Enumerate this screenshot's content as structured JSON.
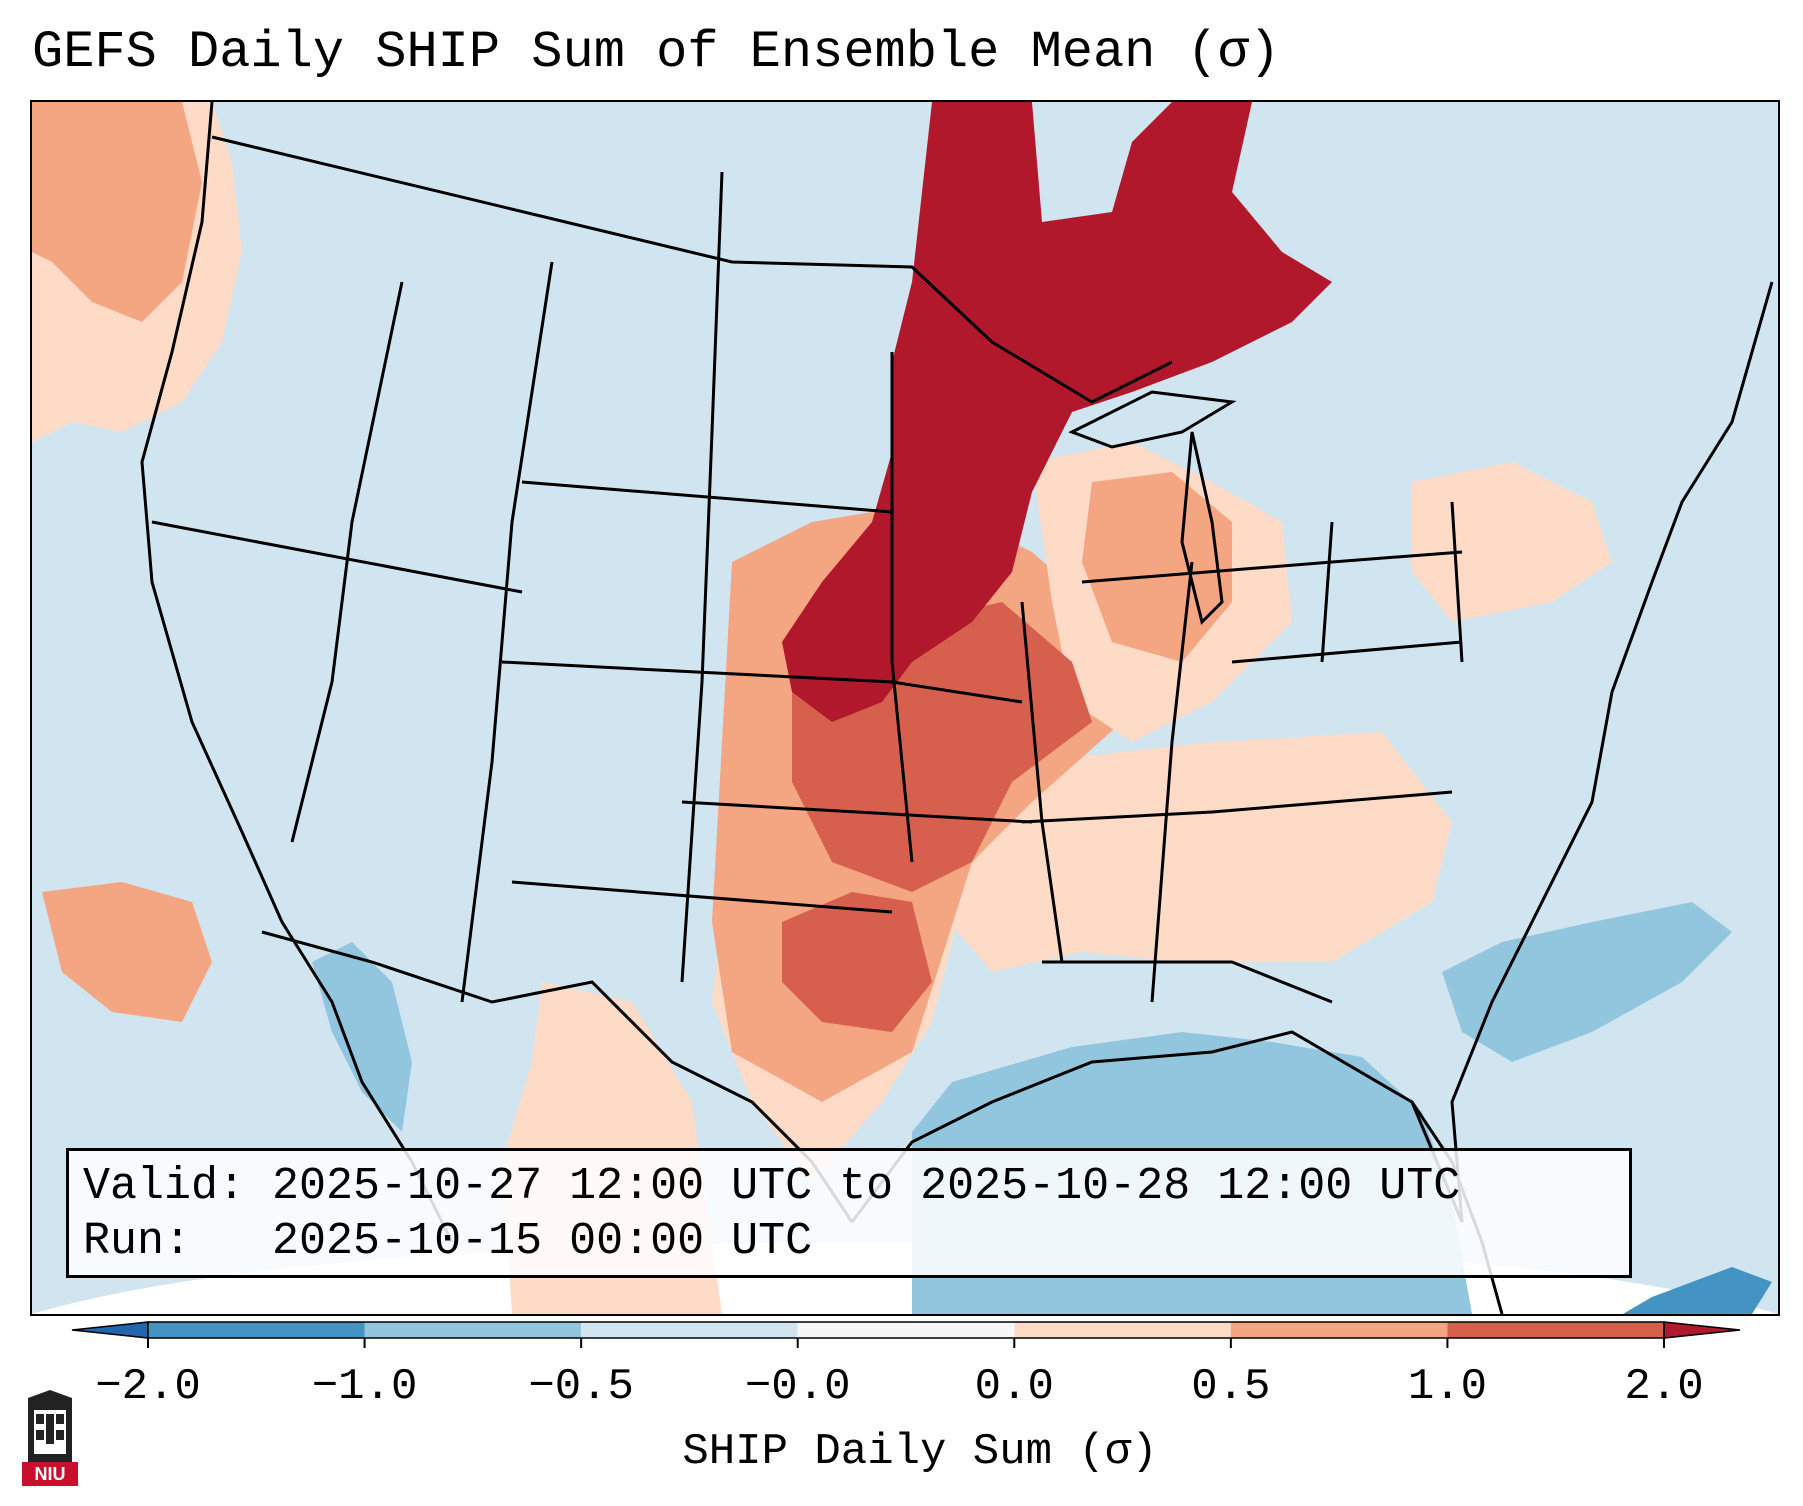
{
  "title": "GEFS Daily SHIP Sum of Ensemble Mean (σ)",
  "info": {
    "valid_label": "Valid:",
    "valid_value": "2025-10-27 12:00 UTC to 2025-10-28 12:00 UTC",
    "run_label": "Run:",
    "run_value": "2025-10-15 00:00 UTC"
  },
  "colorbar": {
    "label": "SHIP Daily Sum (σ)",
    "ticks": [
      "−2.0",
      "−1.0",
      "−0.5",
      "−0.0",
      "0.0",
      "0.5",
      "1.0",
      "2.0"
    ],
    "bins": [
      {
        "range": "< -2.0",
        "color": "#2166ac"
      },
      {
        "range": "-2.0 to -1.0",
        "color": "#4393c3"
      },
      {
        "range": "-1.0 to -0.5",
        "color": "#92c5de"
      },
      {
        "range": "-0.5 to -0.0",
        "color": "#d1e5f0"
      },
      {
        "range": "-0.0 to 0.0",
        "color": "#f7f7f7"
      },
      {
        "range": "0.0 to 0.5",
        "color": "#fddbc7"
      },
      {
        "range": "0.5 to 1.0",
        "color": "#f4a582"
      },
      {
        "range": "1.0 to 2.0",
        "color": "#d6604d"
      },
      {
        "range": "> 2.0",
        "color": "#b2182b"
      }
    ]
  },
  "map": {
    "region": "Contiguous United States and adjacent areas",
    "background_color": "#d1e5f0",
    "highlights": [
      {
        "area": "Northern Plains, Minnesota, Lake Superior, Ontario",
        "level": "> 2.0"
      },
      {
        "area": "Nebraska and South Dakota",
        "level": "> 2.0"
      },
      {
        "area": "Kansas, Oklahoma, Iowa, Missouri",
        "level": "1.0 to 2.0"
      },
      {
        "area": "West Texas",
        "level": "0.5 to 1.0"
      },
      {
        "area": "Gulf of Mexico",
        "level": "-1.0 to -0.5"
      },
      {
        "area": "Western Atlantic off Carolinas",
        "level": "-1.0 to -0.5"
      }
    ]
  },
  "logo": {
    "text": "NIU"
  }
}
